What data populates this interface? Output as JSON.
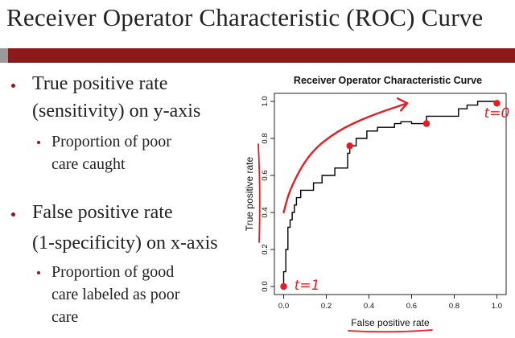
{
  "slide": {
    "title": "Receiver Operator Characteristic (ROC) Curve",
    "bullets": [
      {
        "lines": [
          "True positive rate",
          "(sensitivity) on y-axis"
        ],
        "sub": [
          "Proportion of poor",
          "care caught"
        ]
      },
      {
        "lines": [
          "False positive rate",
          "(1-specificity) on x-axis"
        ],
        "sub": [
          "Proportion of good",
          "care labeled as poor",
          "care"
        ]
      }
    ]
  },
  "chart_data": {
    "type": "line",
    "title": "Receiver Operator Characteristic Curve",
    "xlabel": "False positive rate",
    "ylabel": "True positive rate",
    "xlim": [
      0,
      1
    ],
    "ylim": [
      0,
      1
    ],
    "xticks": [
      "0.0",
      "0.2",
      "0.4",
      "0.6",
      "0.8",
      "1.0"
    ],
    "yticks": [
      "0.0",
      "0.2",
      "0.4",
      "0.6",
      "0.8",
      "1.0"
    ],
    "grid": false,
    "series": [
      {
        "x": [
          0,
          0,
          0.01,
          0.01,
          0.02,
          0.02,
          0.03,
          0.03,
          0.04,
          0.04,
          0.05,
          0.05,
          0.06,
          0.06,
          0.08,
          0.08,
          0.14,
          0.14,
          0.18,
          0.18,
          0.24,
          0.24,
          0.3,
          0.3,
          0.31,
          0.31,
          0.34,
          0.34,
          0.39,
          0.39,
          0.44,
          0.44,
          0.52,
          0.52,
          0.55,
          0.55,
          0.6,
          0.6,
          0.67,
          0.67,
          0.82,
          0.82,
          0.86,
          0.86,
          0.91,
          0.91,
          1.0,
          1.0
        ],
        "y": [
          0,
          0.08,
          0.08,
          0.2,
          0.2,
          0.32,
          0.32,
          0.36,
          0.36,
          0.4,
          0.4,
          0.44,
          0.44,
          0.48,
          0.48,
          0.52,
          0.52,
          0.56,
          0.56,
          0.6,
          0.6,
          0.64,
          0.64,
          0.72,
          0.72,
          0.76,
          0.76,
          0.8,
          0.8,
          0.84,
          0.84,
          0.86,
          0.86,
          0.88,
          0.88,
          0.89,
          0.89,
          0.88,
          0.88,
          0.92,
          0.92,
          0.96,
          0.96,
          0.98,
          0.98,
          1.0,
          1.0,
          1.0
        ]
      }
    ],
    "annotations": {
      "color": "#e31e24",
      "points": [
        {
          "x": 0.0,
          "y": 0.0
        },
        {
          "x": 0.31,
          "y": 0.76
        },
        {
          "x": 0.67,
          "y": 0.88
        },
        {
          "x": 1.0,
          "y": 0.99
        }
      ],
      "labels": [
        {
          "text": "t=1",
          "x": 0.05,
          "y": 0.0
        },
        {
          "text": "t=0",
          "x": 0.94,
          "y": 0.93
        }
      ],
      "arrow": [
        {
          "x": 0.0,
          "y": 0.4
        },
        {
          "x": 0.03,
          "y": 0.53
        },
        {
          "x": 0.12,
          "y": 0.72
        },
        {
          "x": 0.25,
          "y": 0.84
        },
        {
          "x": 0.4,
          "y": 0.92
        },
        {
          "x": 0.58,
          "y": 0.99
        }
      ]
    }
  }
}
